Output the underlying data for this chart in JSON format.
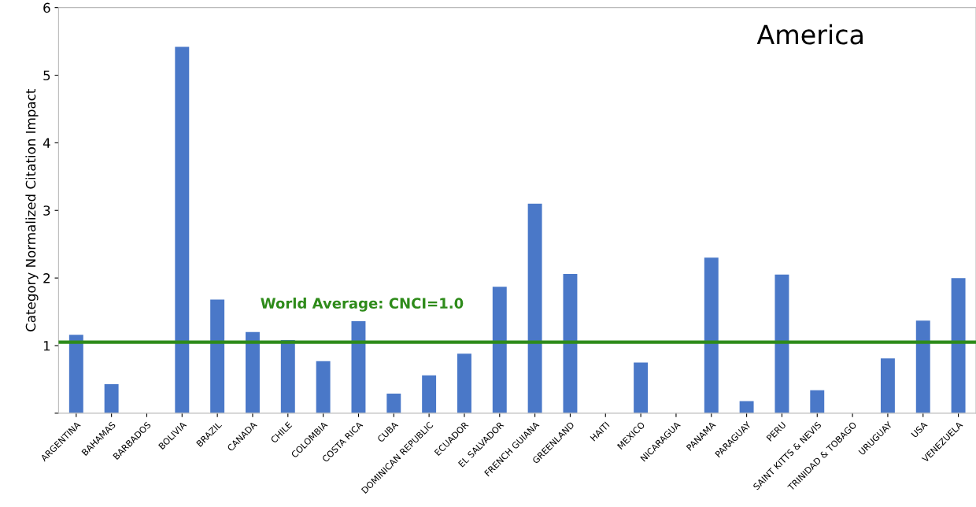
{
  "chart_data": {
    "type": "bar",
    "title": "America",
    "ylabel": "Category Normalized Citation Impact",
    "categories": [
      "ARGENTINA",
      "BAHAMAS",
      "BARBADOS",
      "BOLIVIA",
      "BRAZIL",
      "CANADA",
      "CHILE",
      "COLOMBIA",
      "COSTA RICA",
      "CUBA",
      "DOMINICAN REPUBLIC",
      "ECUADOR",
      "EL SALVADOR",
      "FRENCH GUIANA",
      "GREENLAND",
      "HAITI",
      "MEXICO",
      "NICARAGUA",
      "PANAMA",
      "PARAGUAY",
      "PERU",
      "SAINT KITTS & NEVIS",
      "TRINIDAD & TOBAGO",
      "URUGUAY",
      "USA",
      "VENEZUELA"
    ],
    "values": [
      1.16,
      0.43,
      0,
      5.42,
      1.68,
      1.2,
      1.08,
      0.77,
      1.36,
      0.29,
      0.56,
      0.88,
      1.87,
      3.1,
      2.06,
      0,
      0.75,
      0,
      2.3,
      0.18,
      2.05,
      0.34,
      0,
      0.81,
      1.37,
      2.0
    ],
    "color": "#4a78c8",
    "ylim": [
      0,
      6
    ],
    "yticks": [
      {
        "value": 0,
        "label": null
      },
      1,
      2,
      3,
      4,
      5,
      6
    ],
    "ref_lines": [
      {
        "axis": "y",
        "value": 1.05,
        "label": "World Average: CNCI=1.0",
        "color": "#2e8b1a"
      }
    ],
    "grid": false,
    "legend": false
  }
}
